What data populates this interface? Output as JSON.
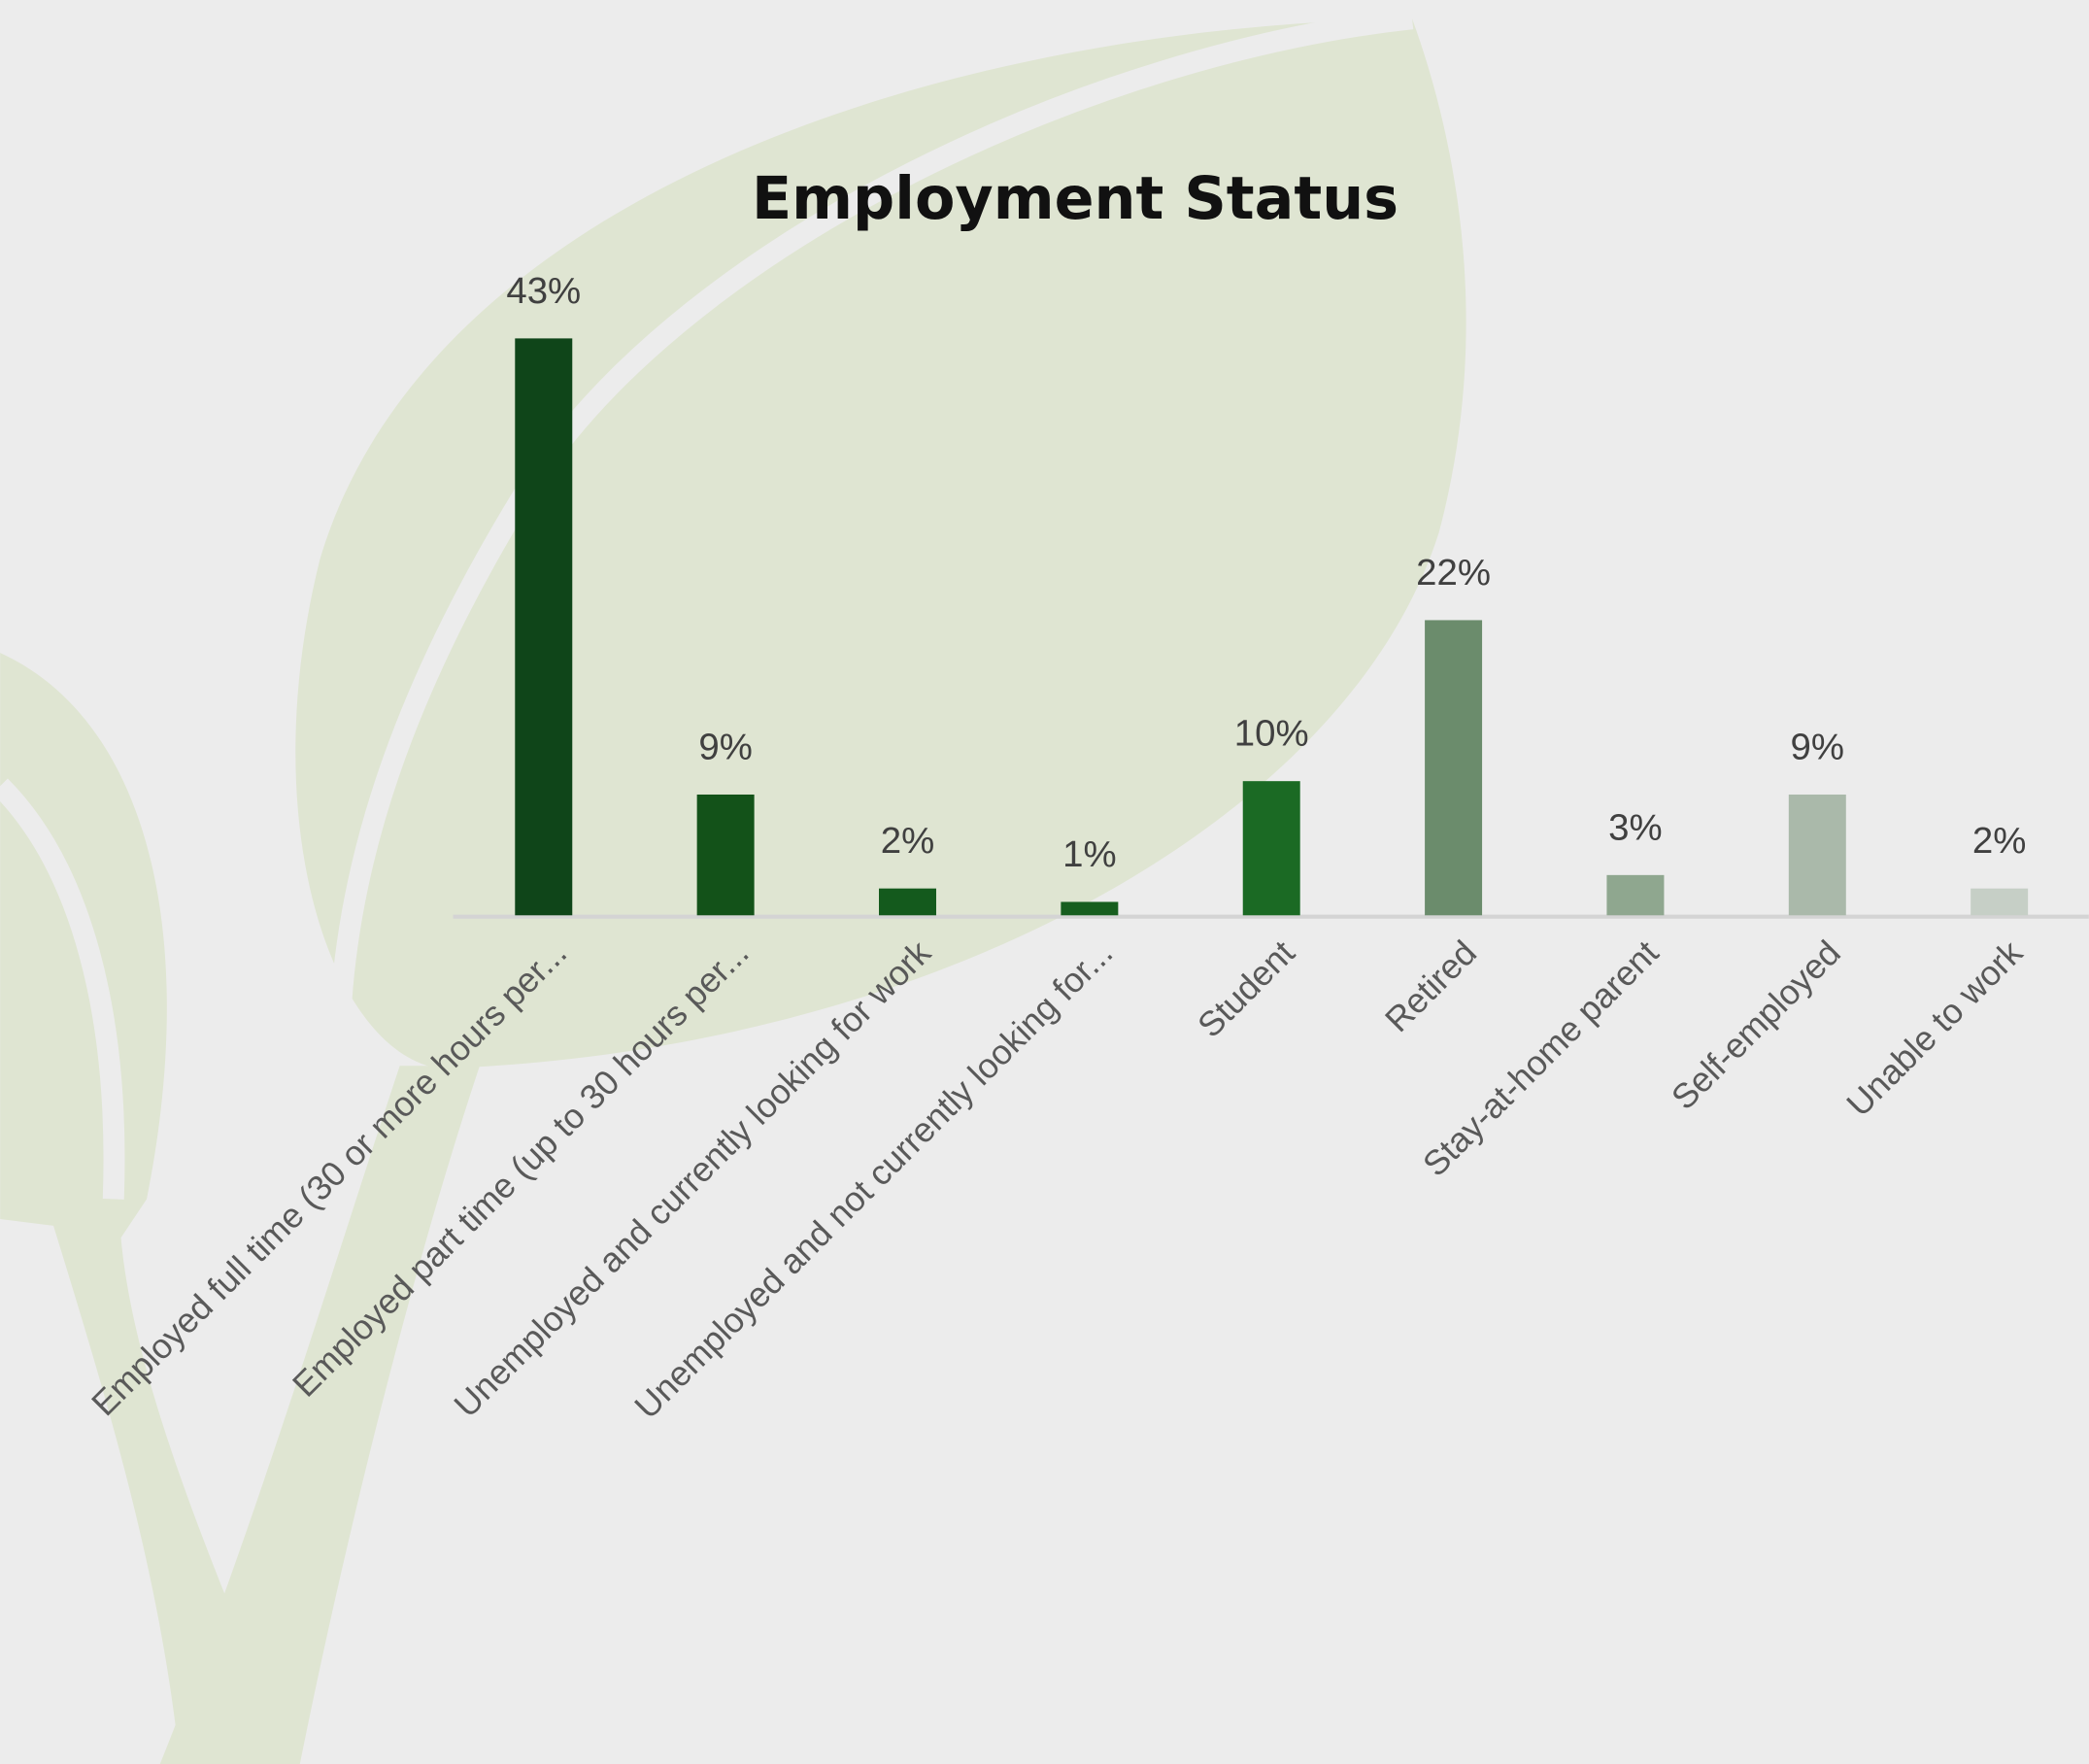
{
  "chart_data": {
    "type": "bar",
    "title": "Employment Status",
    "categories": [
      "Employed full time (30 or more hours per...",
      "Employed part time (up to 30 hours per...",
      "Unemployed and currently looking for work",
      "Unemployed and not currently looking for...",
      "Student",
      "Retired",
      "Stay-at-home parent",
      "Self-employed",
      "Unable to work"
    ],
    "values": [
      43,
      9,
      2,
      1,
      10,
      22,
      3,
      9,
      2
    ],
    "value_labels": [
      "43%",
      "9%",
      "2%",
      "1%",
      "10%",
      "22%",
      "3%",
      "9%",
      "2%"
    ],
    "colors": [
      "#0f4519",
      "#135219",
      "#145a1d",
      "#175e1f",
      "#1b6a24",
      "#6b8c6c",
      "#8fa78f",
      "#aab9aa",
      "#c6cfc6"
    ]
  }
}
